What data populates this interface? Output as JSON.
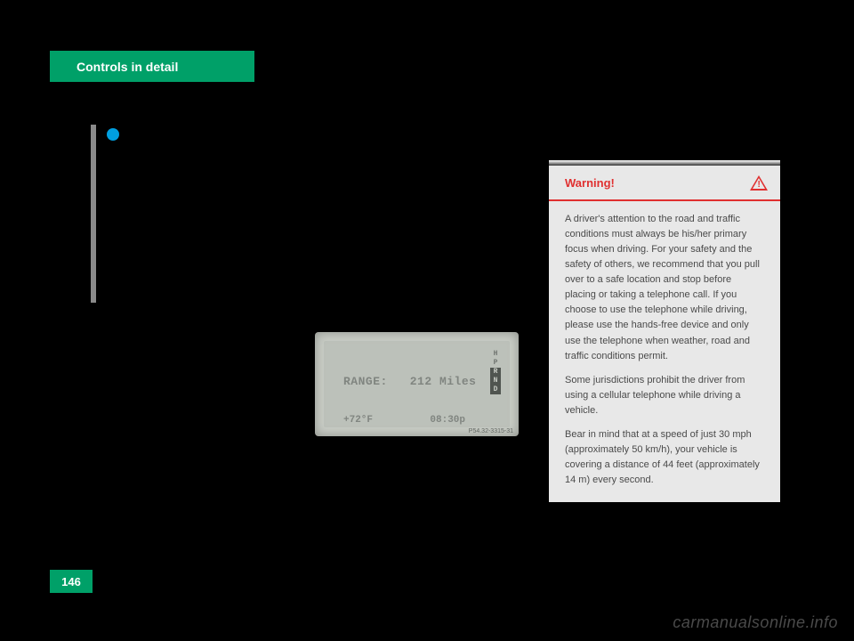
{
  "header": {
    "title": "Controls in detail",
    "bg_color": "#00a068",
    "text_color": "#ffffff"
  },
  "page_number": "146",
  "watermark": "carmanualsonline.info",
  "display": {
    "range_label": "RANGE:",
    "range_value": "212",
    "range_unit": "Miles",
    "temp": "+72°F",
    "time": "08:30p",
    "code": "P54.32-3315-31",
    "gears": [
      "H",
      "P",
      "R",
      "N",
      "D"
    ],
    "bg_color": "#c8ccc5",
    "text_color": "#808580"
  },
  "warning": {
    "title": "Warning!",
    "title_color": "#e03030",
    "bg_color": "#e8e8e8",
    "text_color": "#4a4a4a",
    "paragraphs": [
      "A driver's attention to the road and traffic conditions must always be his/her primary focus when driving. For your safety and the safety of others, we recommend that you pull over to a safe location and stop before placing or taking a telephone call. If you choose to use the telephone while driving, please use the hands-free device and only use the telephone when weather, road and traffic conditions permit.",
      "Some jurisdictions prohibit the driver from using a cellular telephone while driving a vehicle.",
      "Bear in mind that at a speed of just 30 mph (approximately 50 km/h), your vehicle is covering a distance of 44 feet (approximately 14 m) every second."
    ]
  }
}
